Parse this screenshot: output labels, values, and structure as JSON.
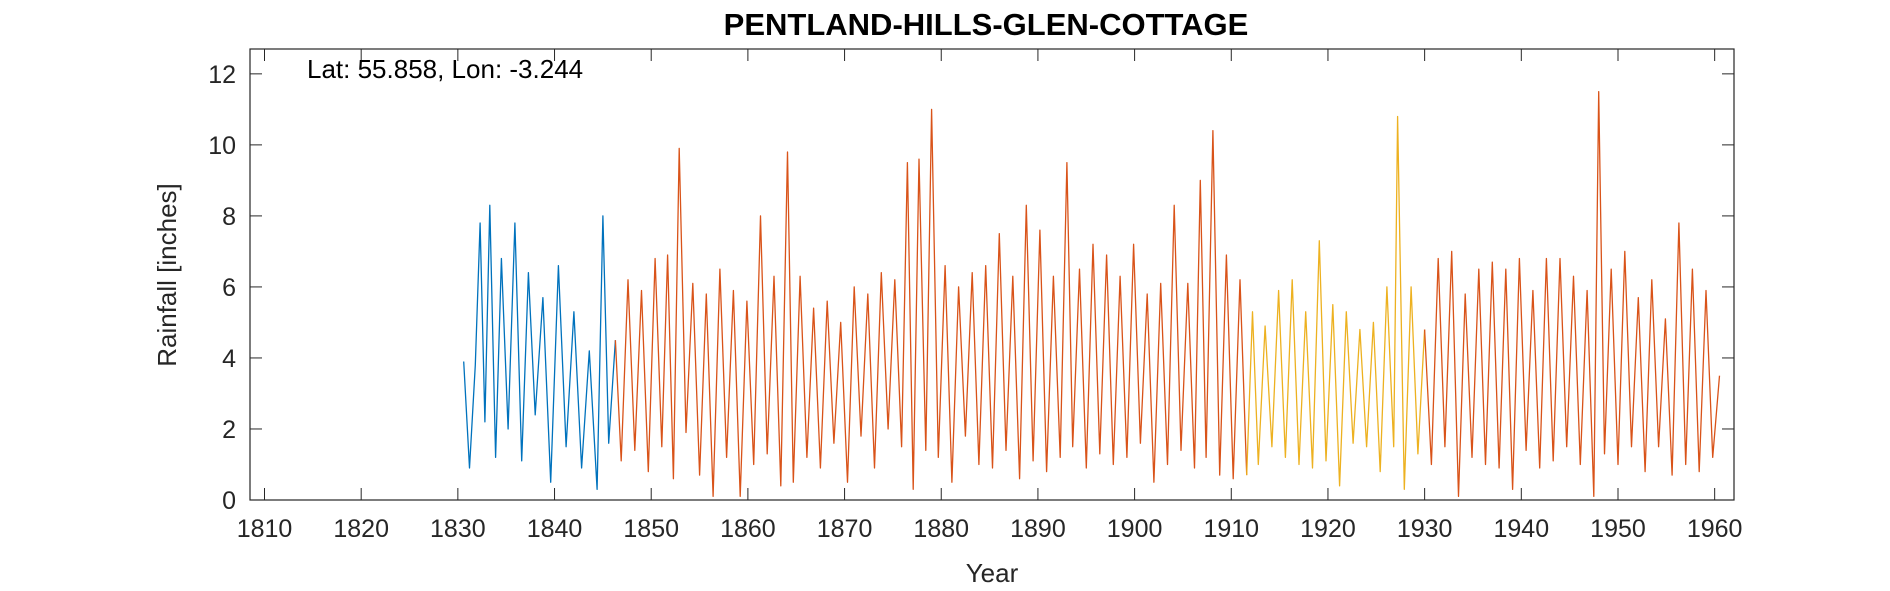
{
  "chart_data": {
    "type": "line",
    "title": "PENTLAND-HILLS-GLEN-COTTAGE",
    "annotation": "Lat: 55.858, Lon: -3.244",
    "xlabel": "Year",
    "ylabel": "Rainfall [inches]",
    "xlim": [
      1808.5,
      1962.0
    ],
    "ylim": [
      0,
      12.7
    ],
    "xticks": [
      1810,
      1820,
      1830,
      1840,
      1850,
      1860,
      1870,
      1880,
      1890,
      1900,
      1910,
      1920,
      1930,
      1940,
      1950,
      1960
    ],
    "yticks": [
      0,
      2,
      4,
      6,
      8,
      10,
      12
    ],
    "grid": false,
    "colors": {
      "series1": "#0072BD",
      "series2": "#D95319",
      "series3": "#EDB120",
      "axis": "#262626"
    },
    "series": [
      {
        "color": "#0072BD",
        "x": [
          1830.6,
          1831.2,
          1831.8,
          1832.3,
          1832.8,
          1833.3,
          1833.9,
          1834.5,
          1835.2,
          1835.9,
          1836.6,
          1837.3,
          1838.0,
          1838.8,
          1839.6,
          1840.4,
          1841.2,
          1842.0,
          1842.8,
          1843.6,
          1844.4,
          1845.0,
          1845.6,
          1846.3
        ],
        "y": [
          3.9,
          0.9,
          3.8,
          7.8,
          2.2,
          8.3,
          1.2,
          6.8,
          2.0,
          7.8,
          1.1,
          6.4,
          2.4,
          5.7,
          0.5,
          6.6,
          1.5,
          5.3,
          0.9,
          4.2,
          0.3,
          8.0,
          1.6,
          4.5
        ]
      },
      {
        "color": "#D95319",
        "x": [
          1846.3,
          1846.9,
          1847.6,
          1848.3,
          1849.0,
          1849.7,
          1850.4,
          1851.1,
          1851.7,
          1852.3,
          1852.9,
          1853.6,
          1854.3,
          1855.0,
          1855.7,
          1856.4,
          1857.1,
          1857.8,
          1858.5,
          1859.2,
          1859.9,
          1860.6,
          1861.3,
          1862.0,
          1862.7,
          1863.4,
          1864.1,
          1864.7,
          1865.4,
          1866.1,
          1866.8,
          1867.5,
          1868.2,
          1868.9,
          1869.6,
          1870.3,
          1871.0,
          1871.7,
          1872.4,
          1873.1,
          1873.8,
          1874.5,
          1875.2,
          1875.9,
          1876.5,
          1877.1,
          1877.7,
          1878.4,
          1879.0,
          1879.7,
          1880.4,
          1881.1,
          1881.8,
          1882.5,
          1883.2,
          1883.9,
          1884.6,
          1885.3,
          1886.0,
          1886.7,
          1887.4,
          1888.1,
          1888.8,
          1889.5,
          1890.2,
          1890.9,
          1891.6,
          1892.3,
          1893.0,
          1893.6,
          1894.3,
          1895.0,
          1895.7,
          1896.4,
          1897.1,
          1897.8,
          1898.5,
          1899.2,
          1899.9,
          1900.6,
          1901.3,
          1902.0,
          1902.7,
          1903.4,
          1904.1,
          1904.8,
          1905.5,
          1906.2,
          1906.8,
          1907.4,
          1908.1,
          1908.8,
          1909.5,
          1910.2,
          1910.9,
          1911.6
        ],
        "y": [
          4.5,
          1.1,
          6.2,
          1.4,
          5.9,
          0.8,
          6.8,
          1.5,
          6.9,
          0.6,
          9.9,
          1.9,
          6.1,
          0.7,
          5.8,
          0.1,
          6.5,
          1.2,
          5.9,
          0.1,
          5.6,
          1.0,
          8.0,
          1.3,
          6.3,
          0.4,
          9.8,
          0.5,
          6.3,
          1.2,
          5.4,
          0.9,
          5.6,
          1.6,
          5.0,
          0.5,
          6.0,
          1.8,
          5.8,
          0.9,
          6.4,
          2.0,
          6.2,
          1.5,
          9.5,
          0.3,
          9.6,
          1.4,
          11.0,
          1.2,
          6.6,
          0.5,
          6.0,
          1.8,
          6.4,
          1.0,
          6.6,
          0.9,
          7.5,
          1.4,
          6.3,
          0.6,
          8.3,
          1.1,
          7.6,
          0.8,
          6.3,
          1.2,
          9.5,
          1.5,
          6.5,
          0.9,
          7.2,
          1.3,
          6.9,
          1.0,
          6.3,
          1.2,
          7.2,
          1.6,
          5.8,
          0.5,
          6.1,
          1.0,
          8.3,
          1.4,
          6.1,
          0.9,
          9.0,
          1.2,
          10.4,
          0.7,
          6.9,
          0.6,
          6.2,
          0.7
        ]
      },
      {
        "color": "#EDB120",
        "x": [
          1911.6,
          1912.2,
          1912.8,
          1913.5,
          1914.2,
          1914.9,
          1915.6,
          1916.3,
          1917.0,
          1917.7,
          1918.4,
          1919.1,
          1919.8,
          1920.5,
          1921.2,
          1921.9,
          1922.6,
          1923.3,
          1924.0,
          1924.7,
          1925.4,
          1926.1,
          1926.8,
          1927.2,
          1927.9,
          1928.6,
          1929.3,
          1930.0
        ],
        "y": [
          0.7,
          5.3,
          1.0,
          4.9,
          1.5,
          5.9,
          1.2,
          6.2,
          1.0,
          5.3,
          0.9,
          7.3,
          1.1,
          5.5,
          0.4,
          5.3,
          1.6,
          4.8,
          1.5,
          5.0,
          0.8,
          6.0,
          1.5,
          10.8,
          0.3,
          6.0,
          1.3,
          4.8
        ]
      },
      {
        "color": "#D95319",
        "x": [
          1930.0,
          1930.7,
          1931.4,
          1932.1,
          1932.8,
          1933.5,
          1934.2,
          1934.9,
          1935.6,
          1936.3,
          1937.0,
          1937.7,
          1938.4,
          1939.1,
          1939.8,
          1940.5,
          1941.2,
          1941.9,
          1942.6,
          1943.3,
          1944.0,
          1944.7,
          1945.4,
          1946.1,
          1946.8,
          1947.5,
          1948.0,
          1948.6,
          1949.3,
          1950.0,
          1950.7,
          1951.4,
          1952.1,
          1952.8,
          1953.5,
          1954.2,
          1954.9,
          1955.6,
          1956.3,
          1957.0,
          1957.7,
          1958.4,
          1959.1,
          1959.8,
          1960.5
        ],
        "y": [
          4.8,
          1.0,
          6.8,
          1.5,
          7.0,
          0.1,
          5.8,
          1.2,
          6.5,
          1.0,
          6.7,
          0.9,
          6.5,
          0.3,
          6.8,
          1.4,
          5.9,
          0.9,
          6.8,
          1.1,
          6.8,
          1.5,
          6.3,
          1.0,
          5.9,
          0.1,
          11.5,
          1.3,
          6.5,
          1.0,
          7.0,
          1.5,
          5.7,
          0.8,
          6.2,
          1.5,
          5.1,
          0.7,
          7.8,
          1.0,
          6.5,
          0.8,
          5.9,
          1.2,
          3.5
        ]
      }
    ]
  }
}
